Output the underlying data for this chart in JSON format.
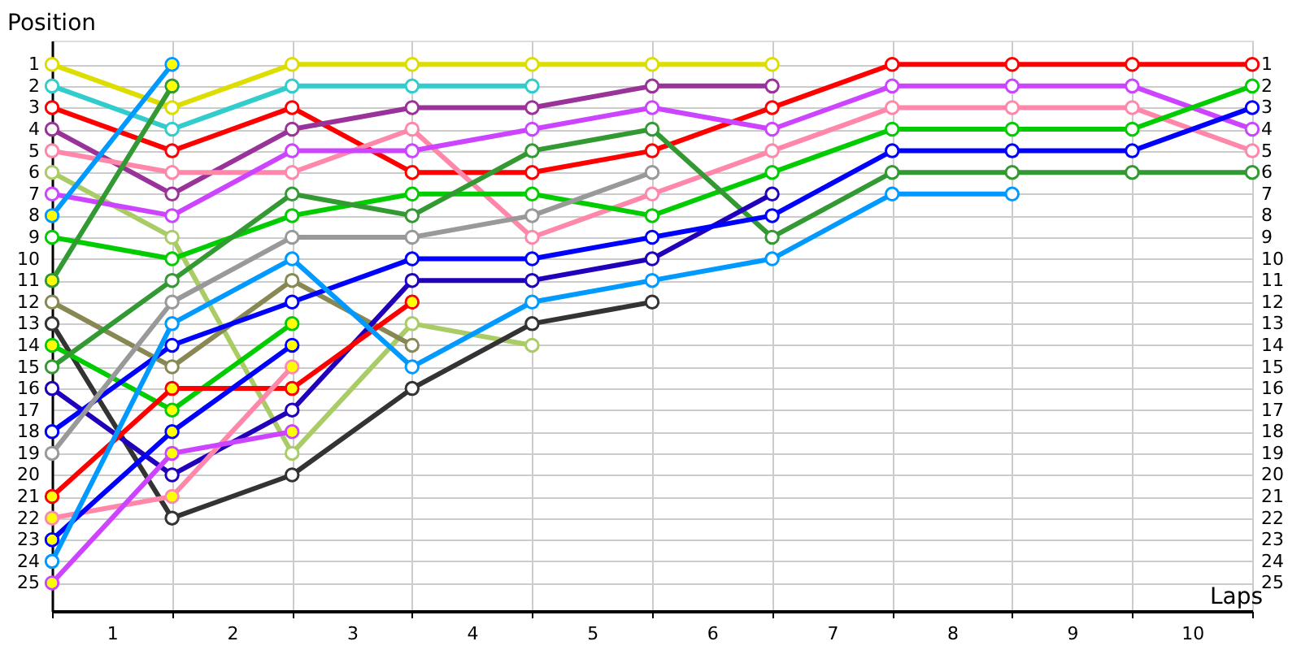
{
  "chart_data": {
    "type": "line",
    "xlabel": "Laps",
    "ylabel": "Position",
    "x": [
      0,
      1,
      2,
      3,
      4,
      5,
      6,
      7,
      8,
      9,
      10
    ],
    "xlim": [
      0,
      10
    ],
    "xticks": [
      {
        "value": 0,
        "label": null
      },
      {
        "value": 0.5,
        "label": "1"
      },
      {
        "value": 1,
        "label": null
      },
      {
        "value": 1.5,
        "label": "2"
      },
      {
        "value": 2,
        "label": null
      },
      {
        "value": 2.5,
        "label": "3"
      },
      {
        "value": 3,
        "label": null
      },
      {
        "value": 3.5,
        "label": "4"
      },
      {
        "value": 4,
        "label": null
      },
      {
        "value": 4.5,
        "label": "5"
      },
      {
        "value": 5,
        "label": null
      },
      {
        "value": 5.5,
        "label": "6"
      },
      {
        "value": 6,
        "label": null
      },
      {
        "value": 6.5,
        "label": "7"
      },
      {
        "value": 7,
        "label": null
      },
      {
        "value": 7.5,
        "label": "8"
      },
      {
        "value": 8,
        "label": null
      },
      {
        "value": 8.5,
        "label": "9"
      },
      {
        "value": 9,
        "label": null
      },
      {
        "value": 9.5,
        "label": "10"
      },
      {
        "value": 10,
        "label": null
      }
    ],
    "ylim": [
      26.3,
      -0.1
    ],
    "yticks": [
      1,
      2,
      3,
      4,
      5,
      6,
      7,
      8,
      9,
      10,
      11,
      12,
      13,
      14,
      15,
      16,
      17,
      18,
      19,
      20,
      21,
      22,
      23,
      24,
      25
    ],
    "y2lim": [
      26.3,
      -0.1
    ],
    "y2ticks": [
      1,
      2,
      3,
      4,
      5,
      6,
      7,
      8,
      9,
      10,
      11,
      12,
      13,
      14,
      15,
      16,
      17,
      18,
      19,
      20,
      21,
      22,
      23,
      24,
      25
    ],
    "grid": true,
    "marker": "circle",
    "line_style": "solid",
    "series": [
      {
        "color": "#dddd00",
        "values": [
          1,
          3,
          1,
          1,
          1,
          1,
          1,
          null,
          null,
          null,
          null
        ]
      },
      {
        "color": "#33cccc",
        "values": [
          2,
          4,
          2,
          2,
          2,
          null,
          null,
          null,
          null,
          null,
          null
        ]
      },
      {
        "color": "#ff0000",
        "values": [
          3,
          5,
          3,
          6,
          6,
          5,
          3,
          1,
          1,
          1,
          1
        ]
      },
      {
        "color": "#993399",
        "values": [
          4,
          7,
          4,
          3,
          3,
          2,
          2,
          null,
          null,
          null,
          null
        ]
      },
      {
        "color": "#ff88aa",
        "values": [
          5,
          6,
          6,
          4,
          9,
          7,
          5,
          3,
          3,
          3,
          5
        ]
      },
      {
        "color": "#aacc66",
        "values": [
          6,
          9,
          19,
          13,
          14,
          null,
          null,
          null,
          null,
          null,
          null
        ]
      },
      {
        "color": "#cc44ff",
        "values": [
          7,
          8,
          5,
          5,
          4,
          3,
          4,
          2,
          2,
          2,
          4
        ]
      },
      {
        "color": "#0099ff",
        "values": [
          8,
          1,
          null,
          null,
          null,
          null,
          null,
          null,
          null,
          null,
          null
        ]
      },
      {
        "color": "#00cc00",
        "values": [
          9,
          10,
          8,
          7,
          7,
          8,
          6,
          4,
          4,
          4,
          2
        ]
      },
      {
        "color": "#339933",
        "values": [
          11,
          2,
          null,
          null,
          null,
          null,
          null,
          null,
          null,
          null,
          null
        ]
      },
      {
        "color": "#888855",
        "values": [
          12,
          15,
          11,
          14,
          null,
          null,
          null,
          null,
          null,
          null,
          null
        ]
      },
      {
        "color": "#333333",
        "values": [
          13,
          22,
          20,
          16,
          13,
          12,
          null,
          null,
          null,
          null,
          null
        ]
      },
      {
        "color": "#00cc00",
        "values": [
          14,
          17,
          13,
          null,
          null,
          null,
          null,
          null,
          null,
          null,
          null
        ]
      },
      {
        "color": "#339933",
        "values": [
          15,
          11,
          7,
          8,
          5,
          4,
          9,
          6,
          6,
          6,
          6
        ]
      },
      {
        "color": "#2200bb",
        "values": [
          16,
          20,
          17,
          11,
          11,
          10,
          7,
          null,
          null,
          null,
          null
        ]
      },
      {
        "color": "#0000ff",
        "values": [
          18,
          14,
          12,
          10,
          10,
          9,
          8,
          5,
          5,
          5,
          3
        ]
      },
      {
        "color": "#999999",
        "values": [
          19,
          12,
          9,
          9,
          8,
          6,
          null,
          null,
          null,
          null,
          null
        ]
      },
      {
        "color": "#ff0000",
        "values": [
          21,
          16,
          16,
          12,
          null,
          null,
          null,
          null,
          null,
          null,
          null
        ]
      },
      {
        "color": "#ff88aa",
        "values": [
          22,
          21,
          15,
          null,
          null,
          null,
          null,
          null,
          null,
          null,
          null
        ]
      },
      {
        "color": "#0000ff",
        "values": [
          23,
          18,
          14,
          null,
          null,
          null,
          null,
          null,
          null,
          null,
          null
        ]
      },
      {
        "color": "#0099ff",
        "values": [
          24,
          13,
          10,
          15,
          12,
          11,
          10,
          7,
          7,
          null,
          null
        ]
      },
      {
        "color": "#cc44ff",
        "values": [
          25,
          19,
          18,
          null,
          null,
          null,
          null,
          null,
          null,
          null,
          null
        ]
      },
      {
        "type": "scatter",
        "color": "#ffff00",
        "x": [
          0,
          0,
          0,
          0,
          0,
          0,
          0,
          1,
          1,
          1,
          1,
          1,
          1,
          1,
          2,
          2,
          2,
          2,
          2,
          3
        ],
        "values": [
          8,
          11,
          14,
          21,
          22,
          23,
          25,
          1,
          2,
          16,
          17,
          18,
          19,
          21,
          13,
          14,
          15,
          16,
          18,
          12
        ]
      }
    ]
  }
}
